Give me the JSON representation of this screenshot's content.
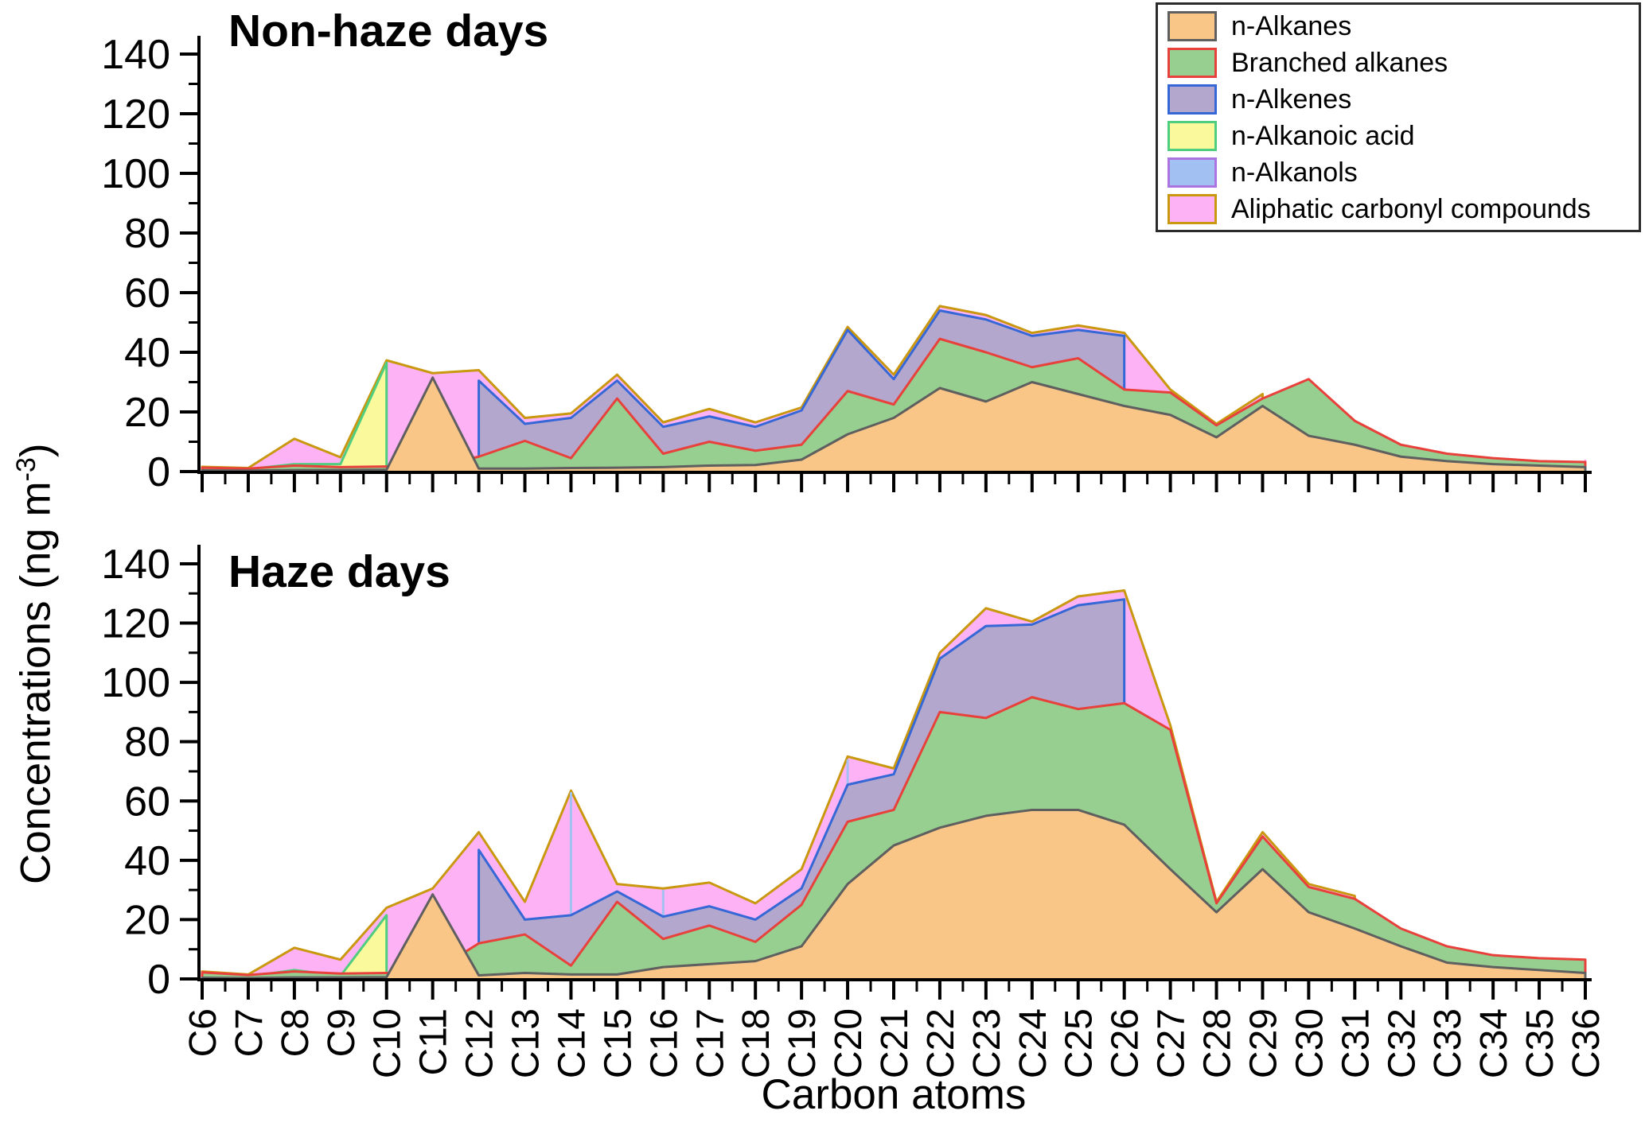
{
  "figure": {
    "x_axis_title": "Carbon atoms",
    "y_axis_title_base": "Concentrations (ng m",
    "y_axis_title_sup": "-3",
    "y_axis_title_close": ")"
  },
  "legend": {
    "items": [
      "n-Alkanes",
      "Branched alkanes",
      "n-Alkenes",
      "n-Alkanoic acid",
      "n-Alkanols",
      "Aliphatic carbonyl compounds"
    ]
  },
  "chart_data": [
    {
      "type": "area",
      "title": "Non-haze days",
      "xlabel": "Carbon atoms",
      "ylabel": "Concentrations (ng m-3)",
      "ylim": [
        0,
        146
      ],
      "yticks": [
        0,
        20,
        40,
        60,
        80,
        100,
        120,
        140
      ],
      "legend_position": "top-right",
      "overlap_mode": "overlapped-areas-front-to-back",
      "categories": [
        "C6",
        "C7",
        "C8",
        "C9",
        "C10",
        "C11",
        "C12",
        "C13",
        "C14",
        "C15",
        "C16",
        "C17",
        "C18",
        "C19",
        "C20",
        "C21",
        "C22",
        "C23",
        "C24",
        "C25",
        "C26",
        "C27",
        "C28",
        "C29",
        "C30",
        "C31",
        "C32",
        "C33",
        "C34",
        "C35",
        "C36"
      ],
      "series": [
        {
          "name": "n-Alkanes",
          "fill": "#F9C688",
          "stroke": "#5F5F5F",
          "values": [
            0.4,
            0.3,
            0.5,
            0.5,
            0.6,
            31.5,
            1,
            1,
            1.2,
            1.3,
            1.5,
            2,
            2.2,
            4,
            12.5,
            18,
            28,
            23.5,
            30,
            26,
            22,
            19,
            11.5,
            22,
            12,
            9,
            5,
            3.5,
            2.5,
            2,
            1.5
          ]
        },
        {
          "name": "Branched alkanes",
          "fill": "#96CF90",
          "stroke": "#E8413C",
          "values": [
            1.3,
            1.0,
            2.0,
            1.5,
            1.7,
            1.5,
            5,
            10.3,
            4.5,
            24.5,
            6,
            10,
            7,
            9,
            27,
            22.5,
            44.5,
            40,
            35,
            38,
            27.5,
            26.5,
            15.5,
            24.5,
            31,
            17,
            9,
            6,
            4.5,
            3.5,
            3.2
          ]
        },
        {
          "name": "n-Alkenes",
          "fill": "#B4A7CE",
          "stroke": "#3568D6",
          "values": [
            null,
            null,
            null,
            null,
            null,
            null,
            30.5,
            16,
            18,
            30.5,
            15,
            18.5,
            15,
            20.5,
            47.5,
            31,
            54,
            51,
            45.5,
            47.5,
            45.5,
            null,
            null,
            null,
            null,
            null,
            null,
            null,
            null,
            null,
            null
          ]
        },
        {
          "name": "n-Alkanoic acid",
          "fill": "#FAFA9D",
          "stroke": "#4FCE7F",
          "values": [
            0.8,
            0.8,
            2.5,
            2.5,
            36.5,
            null,
            null,
            null,
            null,
            null,
            null,
            null,
            null,
            null,
            null,
            null,
            null,
            null,
            null,
            null,
            null,
            null,
            null,
            null,
            null,
            null,
            null,
            null,
            null,
            null,
            null
          ]
        },
        {
          "name": "n-Alkanols",
          "fill": "#A3C0F2",
          "stroke": "#AC74E0",
          "values": [
            null,
            null,
            null,
            null,
            null,
            null,
            null,
            null,
            null,
            null,
            null,
            null,
            null,
            null,
            null,
            null,
            null,
            null,
            null,
            null,
            null,
            null,
            null,
            null,
            null,
            null,
            null,
            null,
            null,
            null,
            null
          ]
        },
        {
          "name": "Aliphatic carbonyl compounds",
          "fill": "#FCB2F4",
          "stroke": "#C9980F",
          "values": [
            1.6,
            1.2,
            11,
            4.8,
            37.3,
            33,
            34,
            18,
            19.5,
            32.5,
            16.5,
            21,
            16.5,
            21.5,
            48.5,
            32.5,
            55.5,
            52.5,
            46.5,
            49,
            46.5,
            27.5,
            16,
            26,
            null,
            null,
            null,
            null,
            null,
            null,
            4
          ]
        }
      ]
    },
    {
      "type": "area",
      "title": "Haze days",
      "xlabel": "Carbon atoms",
      "ylabel": "Concentrations (ng m-3)",
      "ylim": [
        0,
        146
      ],
      "yticks": [
        0,
        20,
        40,
        60,
        80,
        100,
        120,
        140
      ],
      "overlap_mode": "overlapped-areas-front-to-back",
      "categories": [
        "C6",
        "C7",
        "C8",
        "C9",
        "C10",
        "C11",
        "C12",
        "C13",
        "C14",
        "C15",
        "C16",
        "C17",
        "C18",
        "C19",
        "C20",
        "C21",
        "C22",
        "C23",
        "C24",
        "C25",
        "C26",
        "C27",
        "C28",
        "C29",
        "C30",
        "C31",
        "C32",
        "C33",
        "C34",
        "C35",
        "C36"
      ],
      "series": [
        {
          "name": "n-Alkanes",
          "fill": "#F9C688",
          "stroke": "#5F5F5F",
          "values": [
            0.4,
            0.3,
            0.5,
            0.5,
            0.6,
            28.5,
            1.2,
            2,
            1.5,
            1.5,
            4,
            5,
            6,
            11,
            32,
            45,
            51,
            55,
            57,
            57,
            52,
            37,
            22.5,
            37,
            22.5,
            17,
            11,
            5.5,
            4,
            3,
            2
          ]
        },
        {
          "name": "Branched alkanes",
          "fill": "#96CF90",
          "stroke": "#E8413C",
          "values": [
            2.2,
            1.3,
            2.5,
            1.8,
            2,
            2.2,
            12,
            15,
            4.5,
            26,
            13.5,
            18,
            12.5,
            25,
            53,
            57,
            90,
            88,
            95,
            91,
            93,
            84,
            25.5,
            48,
            31,
            27,
            17,
            11,
            8,
            7,
            6.5
          ]
        },
        {
          "name": "n-Alkenes",
          "fill": "#B4A7CE",
          "stroke": "#3568D6",
          "values": [
            null,
            null,
            null,
            null,
            null,
            null,
            43.5,
            20,
            21.5,
            29.5,
            21,
            24.5,
            20,
            30.5,
            65.5,
            69,
            108,
            119,
            119.5,
            126,
            128,
            null,
            null,
            null,
            null,
            null,
            null,
            null,
            null,
            null,
            null
          ]
        },
        {
          "name": "n-Alkanoic acid",
          "fill": "#FAFA9D",
          "stroke": "#4FCE7F",
          "values": [
            0.8,
            0.8,
            3,
            1,
            21.5,
            null,
            null,
            null,
            null,
            null,
            null,
            null,
            null,
            null,
            null,
            null,
            null,
            null,
            null,
            null,
            null,
            null,
            null,
            null,
            null,
            null,
            null,
            null,
            null,
            null,
            null
          ]
        },
        {
          "name": "n-Alkanols",
          "fill": "#A3C0F2",
          "stroke": "#AC74E0",
          "values": [
            null,
            null,
            null,
            null,
            null,
            null,
            null,
            null,
            63,
            null,
            30,
            null,
            null,
            null,
            74,
            null,
            null,
            null,
            null,
            null,
            null,
            null,
            null,
            null,
            null,
            null,
            null,
            null,
            null,
            null,
            null
          ]
        },
        {
          "name": "Aliphatic carbonyl compounds",
          "fill": "#FCB2F4",
          "stroke": "#C9980F",
          "values": [
            2.5,
            1.5,
            10.5,
            6.5,
            24,
            30.5,
            49.5,
            26,
            63.5,
            32,
            30.5,
            32.5,
            25.5,
            37,
            75,
            71,
            110,
            125,
            120.5,
            129,
            131,
            85.5,
            26,
            49.5,
            32,
            28,
            null,
            null,
            null,
            null,
            null
          ]
        }
      ]
    }
  ]
}
